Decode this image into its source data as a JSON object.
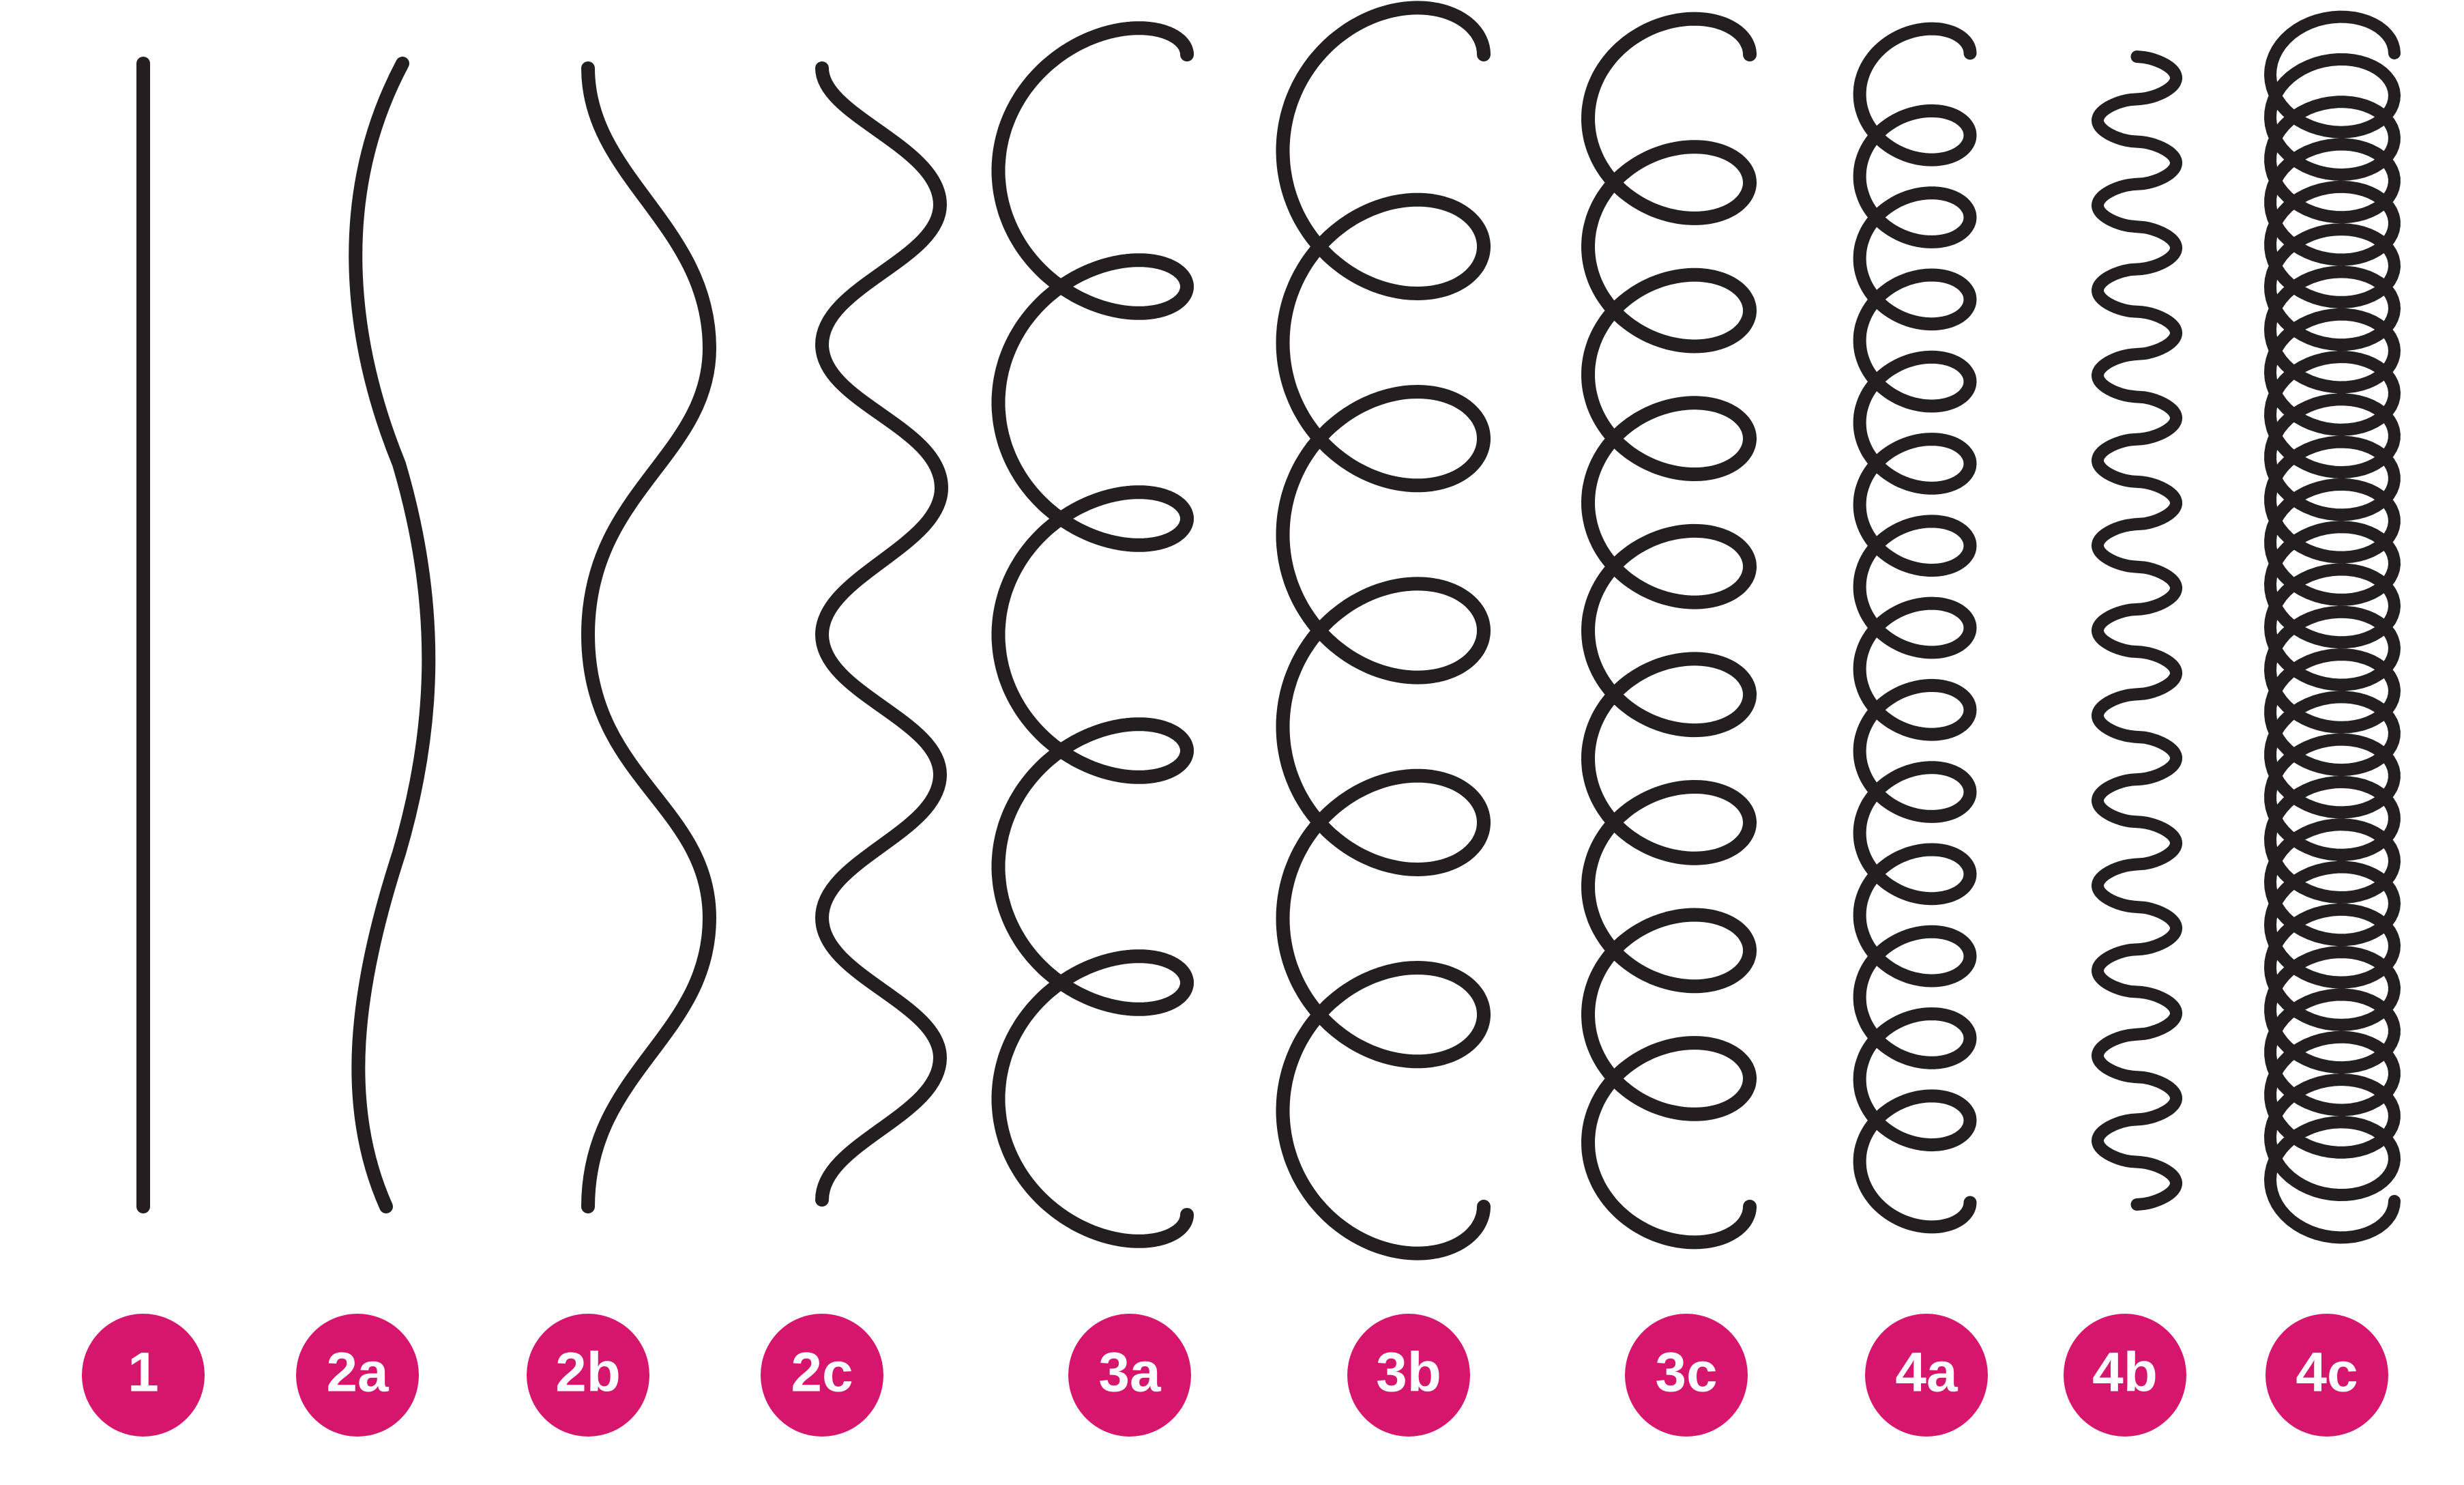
{
  "diagram": {
    "stroke_color": "#231f20",
    "badge_color": "#d5166c",
    "badge_text_color": "#ffffff",
    "hair_types": [
      {
        "id": "1",
        "label": "1",
        "pattern": "straight"
      },
      {
        "id": "2a",
        "label": "2a",
        "pattern": "wavy"
      },
      {
        "id": "2b",
        "label": "2b",
        "pattern": "wavy"
      },
      {
        "id": "2c",
        "label": "2c",
        "pattern": "wavy"
      },
      {
        "id": "3a",
        "label": "3a",
        "pattern": "curly"
      },
      {
        "id": "3b",
        "label": "3b",
        "pattern": "curly"
      },
      {
        "id": "3c",
        "label": "3c",
        "pattern": "curly"
      },
      {
        "id": "4a",
        "label": "4a",
        "pattern": "coily"
      },
      {
        "id": "4b",
        "label": "4b",
        "pattern": "zigzag"
      },
      {
        "id": "4c",
        "label": "4c",
        "pattern": "coily"
      }
    ]
  }
}
